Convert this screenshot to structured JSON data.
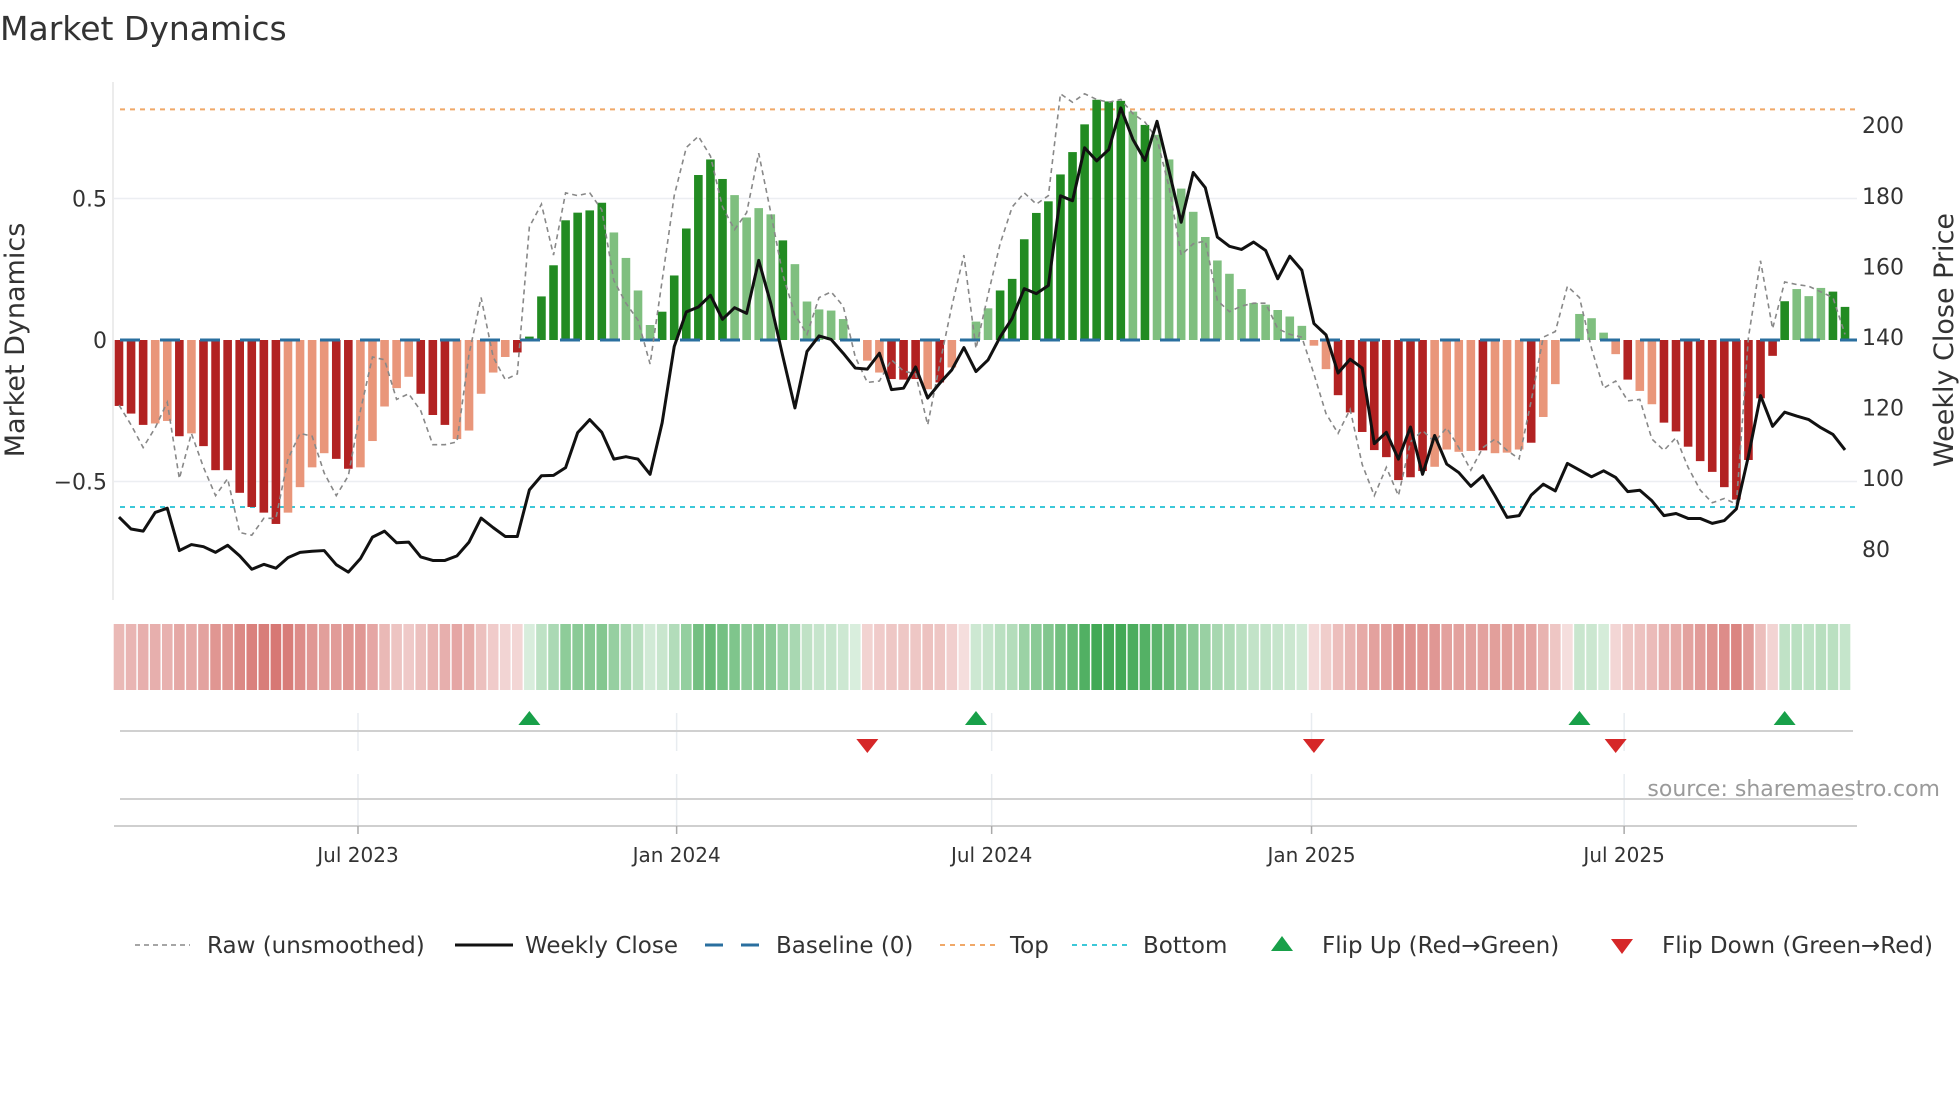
{
  "title": "Market Dynamics",
  "source": "source: sharemaestro.com",
  "chart_data": {
    "type": "bar",
    "title": "Market Dynamics",
    "ylabel": "Market Dynamics",
    "y2label": "Weekly Close Price",
    "ylim": [
      -0.84,
      0.91
    ],
    "y2lim": [
      66,
      214
    ],
    "yticks": [
      {
        "v": 0.5,
        "label": "0.5"
      },
      {
        "v": 0,
        "label": "0"
      },
      {
        "v": -0.5,
        "label": "−0.5"
      }
    ],
    "y2ticks": [
      {
        "v": 200,
        "label": "200"
      },
      {
        "v": 180,
        "label": "180"
      },
      {
        "v": 160,
        "label": "160"
      },
      {
        "v": 140,
        "label": "140"
      },
      {
        "v": 120,
        "label": "120"
      },
      {
        "v": 100,
        "label": "100"
      },
      {
        "v": 80,
        "label": "80"
      }
    ],
    "xticks": [
      {
        "week": 19.8,
        "label": "Jul 2023"
      },
      {
        "week": 46.2,
        "label": "Jan 2024"
      },
      {
        "week": 72.3,
        "label": "Jul 2024"
      },
      {
        "week": 98.8,
        "label": "Jan 2025"
      },
      {
        "week": 124.7,
        "label": "Jul 2025"
      }
    ],
    "top_level": 0.815,
    "bottom_level": -0.59,
    "baseline": 0,
    "smoothed": [
      -0.233,
      -0.26,
      -0.3,
      -0.295,
      -0.286,
      -0.34,
      -0.33,
      -0.375,
      -0.46,
      -0.46,
      -0.54,
      -0.59,
      -0.61,
      -0.65,
      -0.61,
      -0.52,
      -0.45,
      -0.4,
      -0.42,
      -0.455,
      -0.45,
      -0.357,
      -0.235,
      -0.17,
      -0.13,
      -0.19,
      -0.265,
      -0.3,
      -0.35,
      -0.32,
      -0.19,
      -0.115,
      -0.06,
      -0.044,
      0.012,
      0.154,
      0.264,
      0.423,
      0.45,
      0.458,
      0.485,
      0.38,
      0.29,
      0.175,
      0.053,
      0.1,
      0.228,
      0.394,
      0.583,
      0.638,
      0.569,
      0.512,
      0.433,
      0.466,
      0.444,
      0.352,
      0.268,
      0.136,
      0.108,
      0.104,
      0.074,
      0.003,
      -0.073,
      -0.115,
      -0.138,
      -0.14,
      -0.138,
      -0.174,
      -0.15,
      -0.097,
      -0.003,
      0.065,
      0.112,
      0.175,
      0.216,
      0.356,
      0.449,
      0.49,
      0.585,
      0.664,
      0.762,
      0.849,
      0.843,
      0.845,
      0.807,
      0.76,
      0.725,
      0.638,
      0.535,
      0.453,
      0.364,
      0.281,
      0.234,
      0.18,
      0.131,
      0.125,
      0.106,
      0.083,
      0.05,
      -0.02,
      -0.103,
      -0.195,
      -0.256,
      -0.325,
      -0.389,
      -0.414,
      -0.495,
      -0.485,
      -0.463,
      -0.448,
      -0.387,
      -0.395,
      -0.392,
      -0.39,
      -0.4,
      -0.398,
      -0.387,
      -0.363,
      -0.272,
      -0.156,
      -0.003,
      0.092,
      0.077,
      0.026,
      -0.05,
      -0.14,
      -0.18,
      -0.227,
      -0.292,
      -0.323,
      -0.377,
      -0.428,
      -0.466,
      -0.52,
      -0.564,
      -0.424,
      -0.206,
      -0.056,
      0.137,
      0.18,
      0.155,
      0.184,
      0.171,
      0.117
    ],
    "strengthening": "dddlldldddddddllllddllllldddlllllddddddddllllddddddlllldlllllllldddldldlldddddddddddldlllllllllllllllddddddddlllldllldllllllldlldddddddddddllldddldll",
    "raw": [
      -0.23,
      -0.3,
      -0.38,
      -0.31,
      -0.22,
      -0.49,
      -0.33,
      -0.45,
      -0.55,
      -0.49,
      -0.68,
      -0.69,
      -0.63,
      -0.63,
      -0.42,
      -0.33,
      -0.34,
      -0.47,
      -0.55,
      -0.48,
      -0.25,
      -0.06,
      -0.07,
      -0.21,
      -0.19,
      -0.25,
      -0.37,
      -0.37,
      -0.36,
      -0.05,
      0.15,
      -0.06,
      -0.14,
      -0.12,
      0.4,
      0.48,
      0.3,
      0.52,
      0.51,
      0.52,
      0.46,
      0.21,
      0.13,
      0.07,
      -0.085,
      0.21,
      0.51,
      0.68,
      0.72,
      0.65,
      0.47,
      0.39,
      0.45,
      0.66,
      0.45,
      0.23,
      0.09,
      0.02,
      0.15,
      0.17,
      0.12,
      -0.06,
      -0.15,
      -0.145,
      -0.07,
      -0.11,
      -0.12,
      -0.3,
      -0.085,
      0.12,
      0.3,
      -0.03,
      0.16,
      0.34,
      0.47,
      0.52,
      0.48,
      0.51,
      0.87,
      0.84,
      0.87,
      0.85,
      0.84,
      0.85,
      0.8,
      0.77,
      0.71,
      0.54,
      0.3,
      0.34,
      0.35,
      0.14,
      0.1,
      0.12,
      0.13,
      0.13,
      0.04,
      0.02,
      0.01,
      -0.12,
      -0.26,
      -0.33,
      -0.245,
      -0.44,
      -0.55,
      -0.45,
      -0.55,
      -0.36,
      -0.32,
      -0.36,
      -0.31,
      -0.38,
      -0.46,
      -0.38,
      -0.35,
      -0.39,
      -0.42,
      -0.215,
      0.01,
      0.03,
      0.19,
      0.15,
      -0.03,
      -0.17,
      -0.145,
      -0.215,
      -0.21,
      -0.35,
      -0.39,
      -0.345,
      -0.45,
      -0.53,
      -0.575,
      -0.56,
      -0.58,
      0.01,
      0.28,
      0.04,
      0.205,
      0.196,
      0.19,
      0.17,
      0.15,
      0.02
    ],
    "close": [
      89,
      85.6,
      85,
      90.3,
      91.5,
      79.5,
      81.2,
      80.6,
      79,
      81,
      78,
      74.2,
      75.6,
      74.5,
      77.5,
      79,
      79.3,
      79.5,
      75.5,
      73.4,
      77.2,
      83.3,
      85,
      81.7,
      81.9,
      77.7,
      76.7,
      76.7,
      78,
      81.9,
      88.7,
      86,
      83.5,
      83.5,
      96.7,
      100.7,
      100.8,
      103,
      112.9,
      116.6,
      113,
      105.4,
      106.1,
      105.4,
      101.1,
      115.7,
      137.3,
      147.1,
      148.5,
      151.8,
      145,
      148.3,
      146.7,
      161.7,
      149.5,
      134.5,
      119.9,
      135.9,
      140.3,
      139.3,
      135.4,
      131.2,
      130.9,
      135.4,
      125.1,
      125.5,
      131.5,
      122.7,
      126.9,
      130.7,
      137,
      130.2,
      133.5,
      140,
      145.3,
      153.7,
      152.3,
      154.6,
      180,
      178.6,
      193.6,
      189.9,
      193.1,
      204.9,
      196,
      190,
      201.1,
      187,
      172.5,
      186.6,
      182.3,
      168.3,
      165.7,
      164.8,
      166.9,
      164.5,
      156.5,
      162.9,
      158.9,
      143.8,
      140.6,
      129.8,
      133.7,
      131.2,
      109.8,
      113,
      105.4,
      114.5,
      101.1,
      112.1,
      104,
      101.6,
      97.7,
      100.7,
      95,
      88.9,
      89.4,
      95.2,
      98.3,
      96.4,
      104.2,
      102.3,
      100.4,
      102.1,
      100.2,
      96.2,
      96.6,
      93.6,
      89.4,
      90,
      88.6,
      88.6,
      87.2,
      88,
      91.3,
      106.3,
      123.4,
      114.7,
      118.7,
      117.6,
      116.6,
      114.3,
      112.4,
      108
    ],
    "flips": [
      {
        "week": 35,
        "dir": "up"
      },
      {
        "week": 63,
        "dir": "down"
      },
      {
        "week": 72,
        "dir": "up"
      },
      {
        "week": 100,
        "dir": "down"
      },
      {
        "week": 122,
        "dir": "up"
      },
      {
        "week": 125,
        "dir": "down"
      },
      {
        "week": 139,
        "dir": "up"
      }
    ],
    "colors": {
      "dark_red": "#b22222",
      "light_red": "#e9967a",
      "dark_green": "#228b22",
      "light_green": "#7fbf7f",
      "baseline": "#2a6f9f",
      "top": "#f0a868",
      "bottom": "#3cc8d8",
      "raw": "#888888",
      "close": "#111111",
      "flip_up": "#18a049",
      "flip_down": "#d62728"
    },
    "legend_position": "bottom",
    "legend": [
      {
        "key": "raw",
        "label": "Raw (unsmoothed)"
      },
      {
        "key": "close",
        "label": "Weekly Close"
      },
      {
        "key": "baseline",
        "label": "Baseline (0)"
      },
      {
        "key": "top",
        "label": "Top"
      },
      {
        "key": "bottom",
        "label": "Bottom"
      },
      {
        "key": "flip_up",
        "label": "Flip Up (Red→Green)"
      },
      {
        "key": "flip_down",
        "label": "Flip Down (Green→Red)"
      }
    ]
  }
}
